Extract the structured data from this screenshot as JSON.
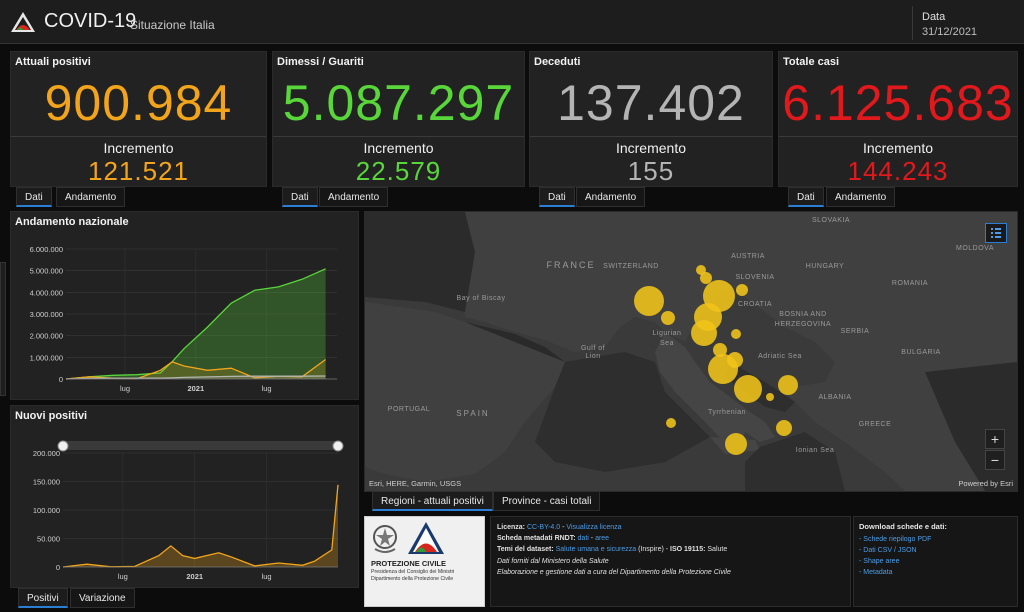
{
  "header": {
    "title": "COVID-19",
    "subtitle": "Situazione Italia",
    "date_label": "Data",
    "date_value": "31/12/2021"
  },
  "cards": [
    {
      "title": "Attuali positivi",
      "value": "900.984",
      "increment_label": "Incremento",
      "increment": "121.521",
      "color": "#f2a51a",
      "tabs": [
        "Dati",
        "Andamento"
      ]
    },
    {
      "title": "Dimessi / Guariti",
      "value": "5.087.297",
      "increment_label": "Incremento",
      "increment": "22.579",
      "color": "#58d63a",
      "tabs": [
        "Dati",
        "Andamento"
      ]
    },
    {
      "title": "Deceduti",
      "value": "137.402",
      "increment_label": "Incremento",
      "increment": "155",
      "color": "#b4b4b4",
      "tabs": [
        "Dati",
        "Andamento"
      ]
    },
    {
      "title": "Totale casi",
      "value": "6.125.683",
      "increment_label": "Incremento",
      "increment": "144.243",
      "color": "#e2191c",
      "tabs": [
        "Dati",
        "Andamento"
      ]
    }
  ],
  "chart_data": [
    {
      "type": "area",
      "title": "Andamento nazionale",
      "y_ticks": [
        "6.000.000",
        "5.000.000",
        "4.000.000",
        "3.000.000",
        "2.000.000",
        "1.000.000",
        "0"
      ],
      "ylim": [
        0,
        6000000
      ],
      "x_ticks": [
        "lug",
        "2021",
        "lug"
      ],
      "x": [
        "2020-02",
        "2020-04",
        "2020-06",
        "2020-08",
        "2020-10",
        "2020-11",
        "2020-12",
        "2021-02",
        "2021-04",
        "2021-06",
        "2021-08",
        "2021-10",
        "2021-12"
      ],
      "series": [
        {
          "color": "#58d63a",
          "values": [
            0,
            100000,
            170000,
            200000,
            280000,
            800000,
            1400000,
            2400000,
            3500000,
            4100000,
            4250000,
            4600000,
            5087297
          ]
        },
        {
          "color": "#f2a51a",
          "values": [
            0,
            100000,
            30000,
            15000,
            400000,
            790000,
            600000,
            400000,
            500000,
            50000,
            130000,
            100000,
            900984
          ]
        },
        {
          "color": "#b4b4b4",
          "values": [
            0,
            27000,
            34000,
            35000,
            38000,
            50000,
            75000,
            95000,
            120000,
            127000,
            128000,
            131000,
            137402
          ]
        }
      ]
    },
    {
      "type": "area",
      "title": "Nuovi positivi",
      "y_ticks": [
        "200.000",
        "150.000",
        "100.000",
        "50.000",
        "0"
      ],
      "ylim": [
        0,
        200000
      ],
      "x_ticks": [
        "lug",
        "2021",
        "lug"
      ],
      "x": [
        "2020-02",
        "2020-04",
        "2020-06",
        "2020-08",
        "2020-10",
        "2020-11",
        "2020-12",
        "2021-01",
        "2021-03",
        "2021-04",
        "2021-06",
        "2021-08",
        "2021-10",
        "2021-11",
        "2021-12-15",
        "2021-12-31"
      ],
      "series": [
        {
          "color": "#f2a51a",
          "values": [
            0,
            5000,
            300,
            1000,
            20000,
            37000,
            20000,
            15000,
            25000,
            18000,
            2000,
            7000,
            3000,
            10000,
            30000,
            144243
          ]
        }
      ],
      "tabs": [
        "Positivi",
        "Variazione"
      ]
    }
  ],
  "map": {
    "attribution": "Esri, HERE, Garmin, USGS",
    "powered_by": "Powered by Esri",
    "labels": [
      {
        "text": "SLOVAKIA"
      },
      {
        "text": "MOLDOVA"
      },
      {
        "text": "AUSTRIA"
      },
      {
        "text": "HUNGARY"
      },
      {
        "text": "FRANCE"
      },
      {
        "text": "SWITZERLAND"
      },
      {
        "text": "SLOVENIA"
      },
      {
        "text": "ROMANIA"
      },
      {
        "text": "CROATIA"
      },
      {
        "text": "Bay of Biscay"
      },
      {
        "text": "BOSNIA AND"
      },
      {
        "text": "HERZEGOVINA"
      },
      {
        "text": "SERBIA"
      },
      {
        "text": "Ligurian"
      },
      {
        "text": "Sea"
      },
      {
        "text": "Gulf of"
      },
      {
        "text": "Lion"
      },
      {
        "text": "Adriatic Sea"
      },
      {
        "text": "BULGARIA"
      },
      {
        "text": "PORTUGAL"
      },
      {
        "text": "SPAIN"
      },
      {
        "text": "ALBANIA"
      },
      {
        "text": "Tyrrhenian"
      },
      {
        "text": "GREECE"
      },
      {
        "text": "Ionian Sea"
      }
    ],
    "bubbles_color": "#f0c419",
    "tabs": [
      "Regioni - attuali positivi",
      "Province - casi totali"
    ],
    "zoom_in": "+",
    "zoom_out": "−"
  },
  "logo": {
    "org": "PROTEZIONE CIVILE",
    "line1": "Presidenza del Consiglio dei Ministri",
    "line2": "Dipartimento della Protezione Civile"
  },
  "info": {
    "licenza_label": "Licenza:",
    "licenza_link": "CC-BY-4.0",
    "licenza_sep": " - ",
    "licenza_link2": "Visualizza licenza",
    "scheda_label": "Scheda metadati RNDT:",
    "scheda_link1": "dati",
    "scheda_sep": " - ",
    "scheda_link2": "aree",
    "temi_label": "Temi del dataset:",
    "temi_link": "Salute umana e sicurezza",
    "temi_rest": " (Inspire) - ",
    "iso_label": "ISO 19115:",
    "iso_value": " Salute",
    "fonte": "Dati forniti dal Ministero della Salute",
    "elaborazione": "Elaborazione e gestione dati a cura del Dipartimento della Protezione Civile"
  },
  "downloads": {
    "title": "Download schede e dati:",
    "items": [
      "- Schede riepilogo PDF",
      "- Dati CSV / JSON",
      "- Shape aree",
      "- Metadata"
    ]
  }
}
